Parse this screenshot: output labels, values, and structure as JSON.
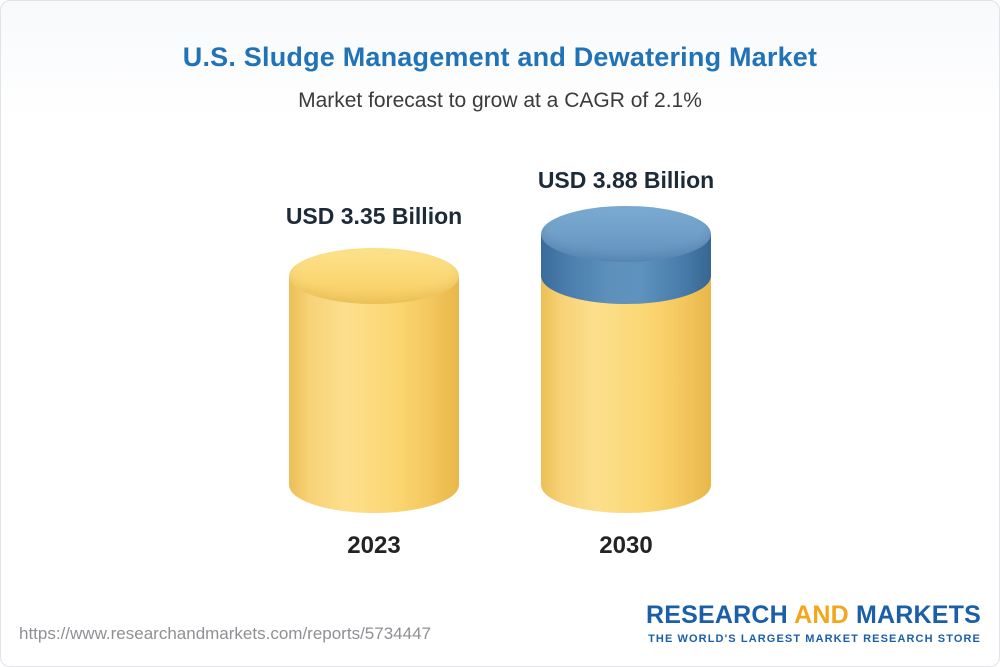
{
  "chart_data": {
    "type": "bar",
    "bar_style": "cylinder-3d",
    "title": "U.S. Sludge Management and Dewatering Market",
    "subtitle": "Market forecast to grow at a CAGR of 2.1%",
    "cagr_percent": 2.1,
    "unit": "USD Billion",
    "categories": [
      "2023",
      "2030"
    ],
    "values": [
      3.35,
      3.88
    ],
    "value_labels": [
      "USD 3.35 Billion",
      "USD 3.88 Billion"
    ],
    "grid": false,
    "legend": "none",
    "colors": {
      "bar_base": "#f8d373",
      "bar_growth_cap": "#4d80ab",
      "title_text": "#2173b8",
      "label_text": "#1d2b39"
    }
  },
  "footer": {
    "url": "https://www.researchandmarkets.com/reports/5734447",
    "logo": {
      "word_research": "RESEARCH",
      "word_and": "AND",
      "word_markets": "MARKETS",
      "tagline": "THE WORLD'S LARGEST MARKET RESEARCH STORE"
    }
  }
}
